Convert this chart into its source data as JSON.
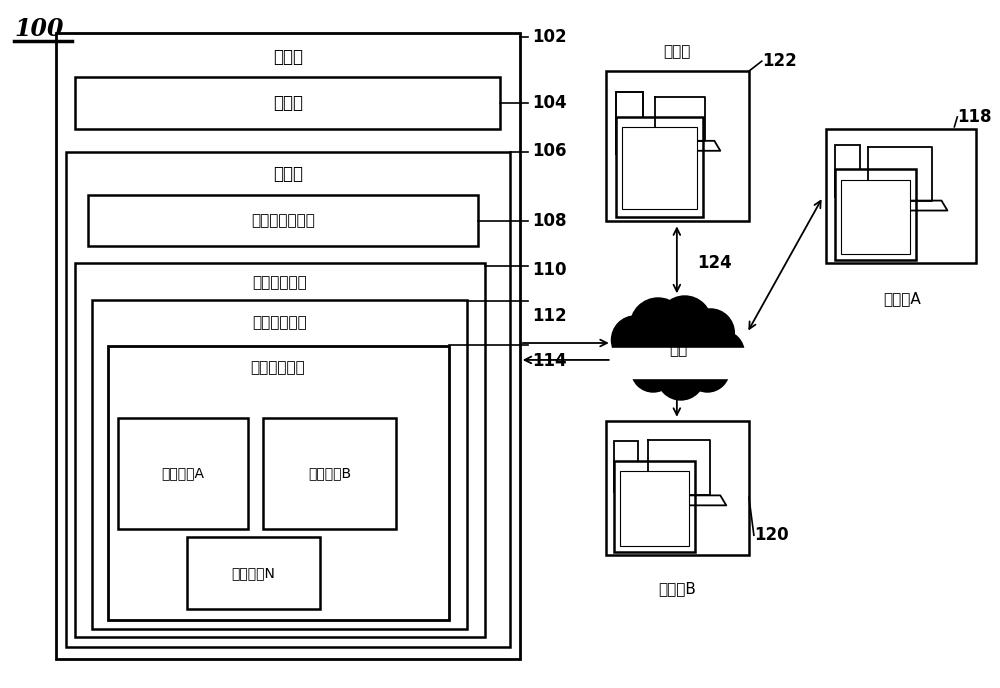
{
  "bg_color": "#ffffff",
  "label_100": "100",
  "label_102": "102",
  "label_104": "104",
  "label_106": "106",
  "label_108": "108",
  "label_110": "110",
  "label_112": "112",
  "label_114": "114",
  "label_118": "118",
  "label_120": "120",
  "label_122": "122",
  "label_124": "124",
  "text_server": "服务器",
  "text_processor": "处理器",
  "text_storage": "存储器",
  "text_deeplink": "深度链接生成器",
  "text_vidplatform": "视频会议平台",
  "text_vidspace": "视频会议空间",
  "text_sessionlist": "会议时段列表",
  "text_sessionA": "会议时段A",
  "text_sessionB": "会议时段B",
  "text_sessionN": "会议时段N",
  "text_network": "网络",
  "text_admin": "管理员",
  "text_participantA": "参与者A",
  "text_participantB": "参与者B"
}
